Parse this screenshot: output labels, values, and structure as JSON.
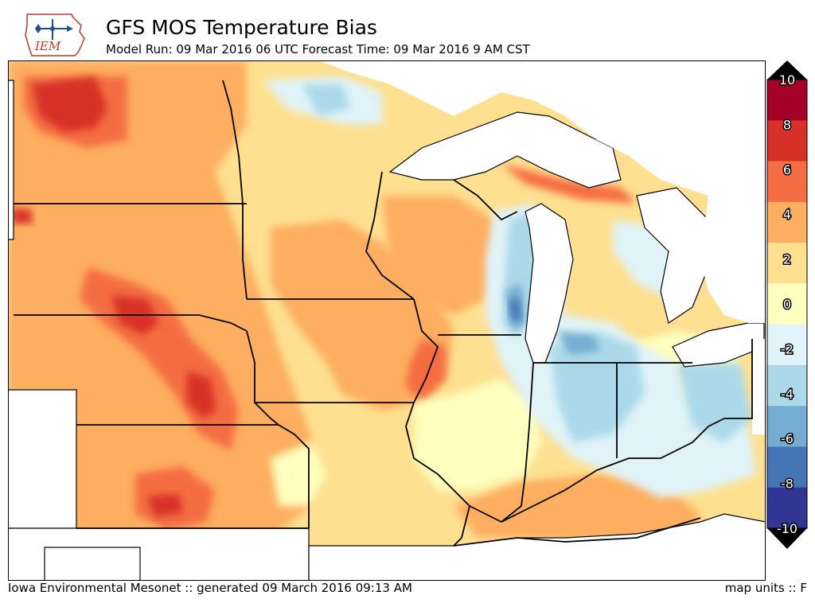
{
  "header": {
    "logo_text": "IEM",
    "title": "GFS MOS Temperature Bias",
    "subtitle": "Model Run: 09 Mar 2016 06 UTC Forecast Time: 09 Mar 2016 9 AM CST"
  },
  "colorbar": {
    "tick_labels": [
      "10",
      "8",
      "6",
      "4",
      "2",
      "0",
      "-2",
      "-4",
      "-6",
      "-8",
      "-10"
    ],
    "colors": [
      "#a50026",
      "#d73027",
      "#f46d43",
      "#fdae61",
      "#fee090",
      "#ffffbf",
      "#e0f3f8",
      "#abd9e9",
      "#74add1",
      "#4575b4",
      "#313695"
    ],
    "under_color": "#000000",
    "over_color": "#000000"
  },
  "footer": {
    "source": "Iowa Environmental Mesonet :: generated 09 March 2016 09:13 AM",
    "units": "map units :: F"
  }
}
